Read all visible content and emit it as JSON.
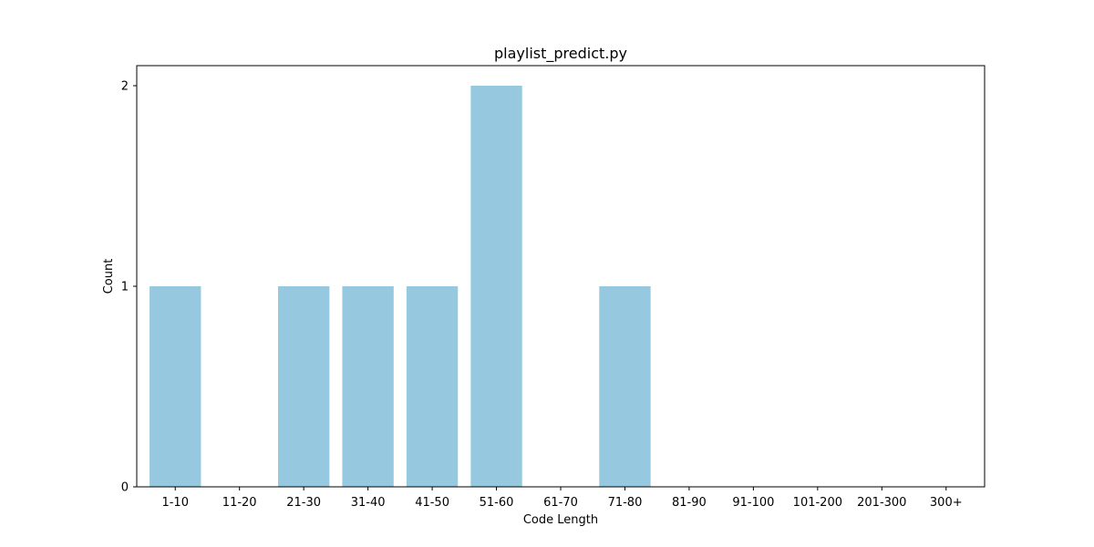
{
  "chart_data": {
    "type": "bar",
    "title": "playlist_predict.py",
    "xlabel": "Code Length",
    "ylabel": "Count",
    "categories": [
      "1-10",
      "11-20",
      "21-30",
      "31-40",
      "41-50",
      "51-60",
      "61-70",
      "71-80",
      "81-90",
      "91-100",
      "101-200",
      "201-300",
      "300+"
    ],
    "values": [
      1,
      0,
      1,
      1,
      1,
      2,
      0,
      1,
      0,
      0,
      0,
      0,
      0
    ],
    "yticks": [
      0,
      1,
      2
    ],
    "ylim": [
      0,
      2.1
    ],
    "grid": false,
    "legend": false,
    "bar_color": "#96c9df",
    "axis_color": "#000000"
  }
}
